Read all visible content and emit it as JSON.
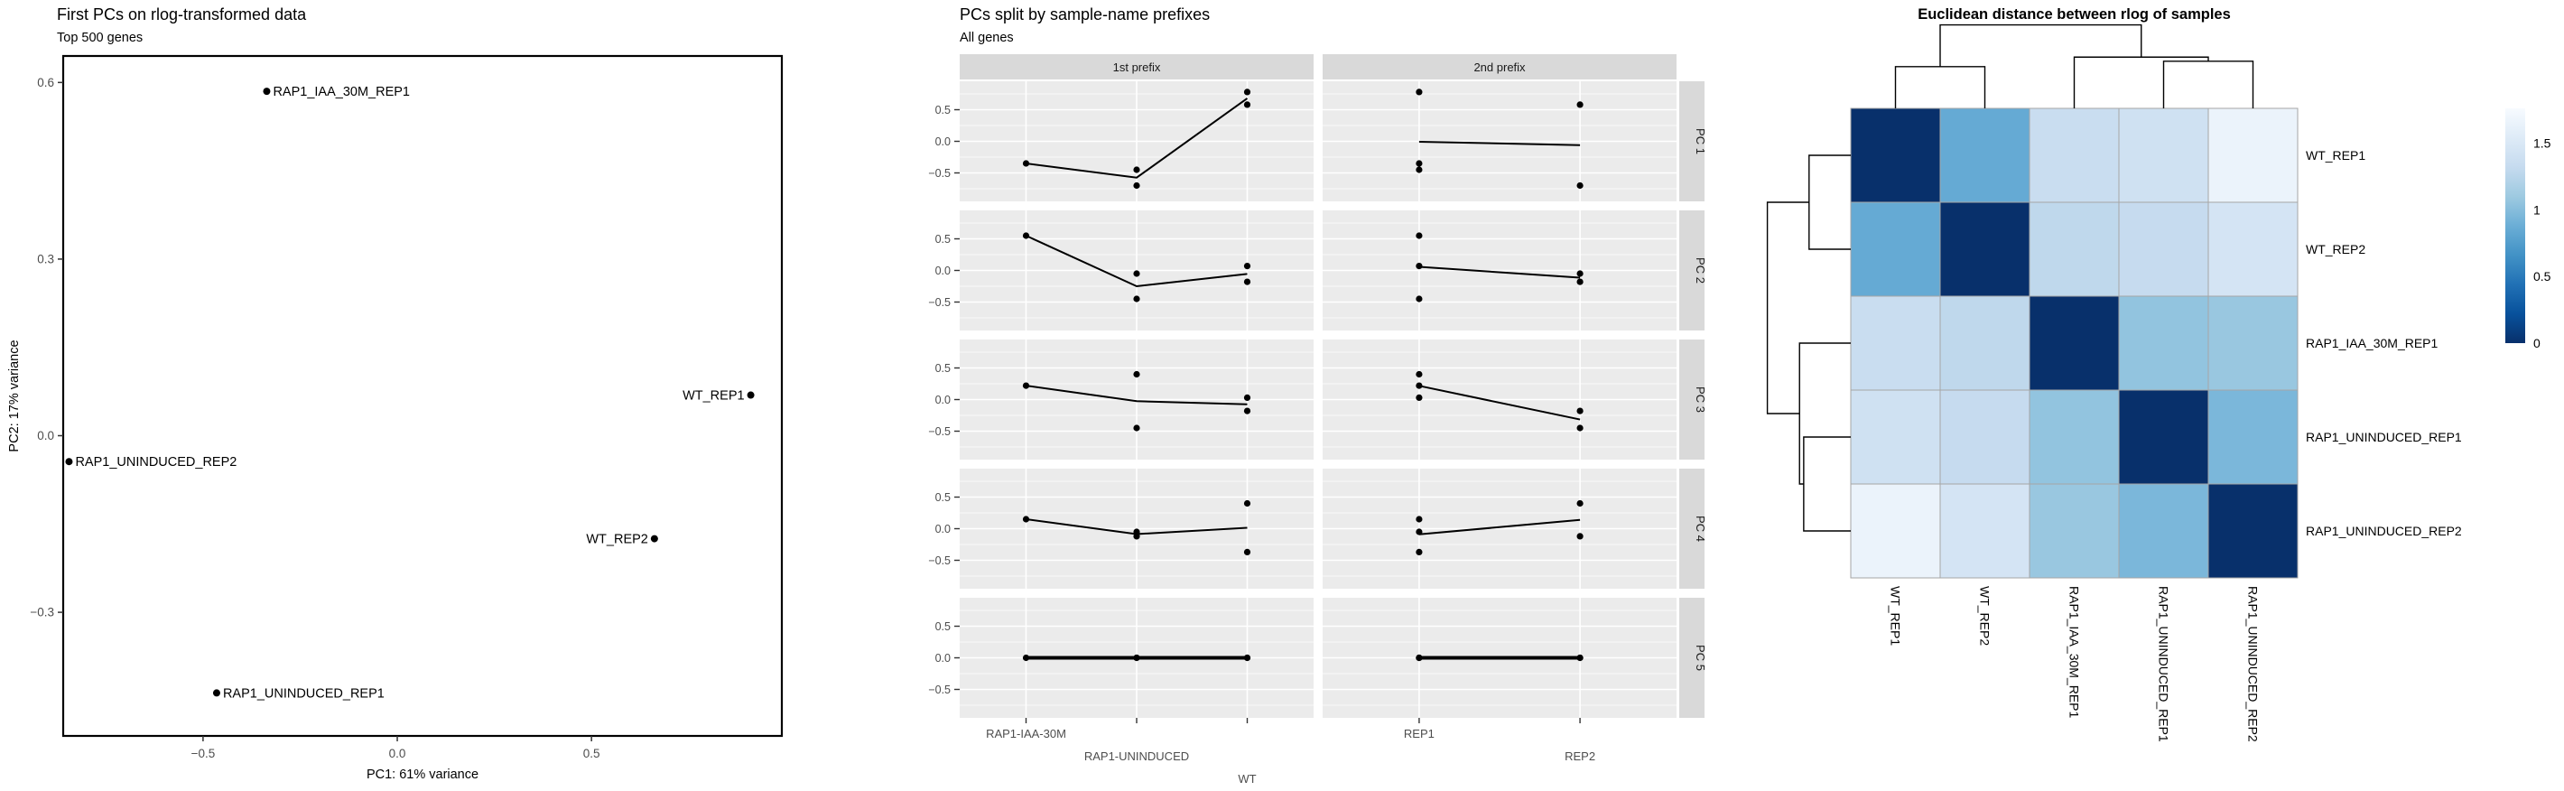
{
  "background": "#ffffff",
  "pca_title": "First PCs on rlog-transformed data",
  "pca_subtitle": "Top 500 genes",
  "facet_title": "PCs split by sample-name prefixes",
  "facet_subtitle": "All genes",
  "heatmap_title": "Euclidean distance between rlog of samples",
  "chart_data": [
    {
      "type": "scatter",
      "title": "First PCs on rlog-transformed data",
      "subtitle": "Top 500 genes",
      "xlabel": "PC1: 61% variance",
      "ylabel": "PC2: 17% variance",
      "xlim": [
        -0.86,
        0.99
      ],
      "ylim": [
        -0.51,
        0.645
      ],
      "x_ticks": [
        -0.5,
        0.0,
        0.5
      ],
      "y_ticks": [
        0.6,
        0.3,
        0.0,
        -0.3
      ],
      "grid": false,
      "legend": "none",
      "points": [
        {
          "label": "RAP1_IAA_30M_REP1",
          "x": -0.336,
          "y": 0.585,
          "label_side": "right"
        },
        {
          "label": "WT_REP1",
          "x": 0.91,
          "y": 0.069,
          "label_side": "left"
        },
        {
          "label": "RAP1_UNINDUCED_REP2",
          "x": -0.845,
          "y": -0.044,
          "label_side": "right"
        },
        {
          "label": "WT_REP2",
          "x": 0.662,
          "y": -0.175,
          "label_side": "left"
        },
        {
          "label": "RAP1_UNINDUCED_REP1",
          "x": -0.465,
          "y": -0.437,
          "label_side": "right"
        }
      ]
    },
    {
      "type": "scatter",
      "title": "PCs split by sample-name prefixes",
      "subtitle": "All genes",
      "facet_cols": [
        {
          "label": "1st prefix",
          "key": "prefix1",
          "categories": [
            "RAP1-IAA-30M",
            "RAP1-UNINDUCED",
            "WT"
          ]
        },
        {
          "label": "2nd prefix",
          "key": "prefix2",
          "categories": [
            "REP1",
            "REP2"
          ]
        }
      ],
      "facet_rows": [
        "PC 1",
        "PC 2",
        "PC 3",
        "PC 4",
        "PC 5"
      ],
      "y_ticks": [
        0.5,
        0.0,
        -0.5
      ],
      "ylim": [
        -0.95,
        0.95
      ],
      "samples": [
        {
          "name": "RAP1_IAA_30M_REP1",
          "prefix1": "RAP1-IAA-30M",
          "prefix2": "REP1",
          "pcs": [
            -0.35,
            0.55,
            0.22,
            0.15,
            0.0
          ]
        },
        {
          "name": "RAP1_UNINDUCED_REP1",
          "prefix1": "RAP1-UNINDUCED",
          "prefix2": "REP1",
          "pcs": [
            -0.45,
            -0.45,
            0.4,
            -0.05,
            0.0
          ]
        },
        {
          "name": "RAP1_UNINDUCED_REP2",
          "prefix1": "RAP1-UNINDUCED",
          "prefix2": "REP2",
          "pcs": [
            -0.7,
            -0.05,
            -0.45,
            -0.12,
            0.0
          ]
        },
        {
          "name": "WT_REP1",
          "prefix1": "WT",
          "prefix2": "REP1",
          "pcs": [
            0.78,
            0.07,
            0.03,
            -0.37,
            0.0
          ]
        },
        {
          "name": "WT_REP2",
          "prefix1": "WT",
          "prefix2": "REP2",
          "pcs": [
            0.58,
            -0.18,
            -0.18,
            0.4,
            0.0
          ]
        }
      ]
    },
    {
      "type": "heatmap",
      "title": "Euclidean distance between rlog of samples",
      "labels": [
        "WT_REP1",
        "WT_REP2",
        "RAP1_IAA_30M_REP1",
        "RAP1_UNINDUCED_REP1",
        "RAP1_UNINDUCED_REP2"
      ],
      "matrix": [
        [
          0.0,
          0.85,
          1.35,
          1.4,
          1.65
        ],
        [
          0.85,
          0.0,
          1.28,
          1.32,
          1.45
        ],
        [
          1.35,
          1.28,
          0.0,
          1.05,
          1.08
        ],
        [
          1.4,
          1.32,
          1.05,
          0.0,
          0.95
        ],
        [
          1.65,
          1.45,
          1.08,
          0.95,
          0.0
        ]
      ],
      "legend_ticks": [
        {
          "label": "1.5",
          "value": 1.5
        },
        {
          "label": "1",
          "value": 1.0
        },
        {
          "label": "0.5",
          "value": 0.5
        },
        {
          "label": "0",
          "value": 0.0
        }
      ],
      "scale_max": 1.76,
      "color_scale": [
        "#08306b",
        "#08519c",
        "#2171b5",
        "#4292c6",
        "#6baed6",
        "#9ecae1",
        "#c6dbef",
        "#deebf7",
        "#f7fbff"
      ],
      "dendrogram_merges": [
        {
          "a": {
            "leaf": 0
          },
          "b": {
            "leaf": 1
          },
          "height": 0.7
        },
        {
          "a": {
            "leaf": 3
          },
          "b": {
            "leaf": 4
          },
          "height": 0.79
        },
        {
          "a": {
            "leaf": 2
          },
          "b": {
            "merge": 1
          },
          "height": 0.86
        },
        {
          "a": {
            "merge": 0
          },
          "b": {
            "merge": 2
          },
          "height": 1.4
        }
      ]
    }
  ]
}
